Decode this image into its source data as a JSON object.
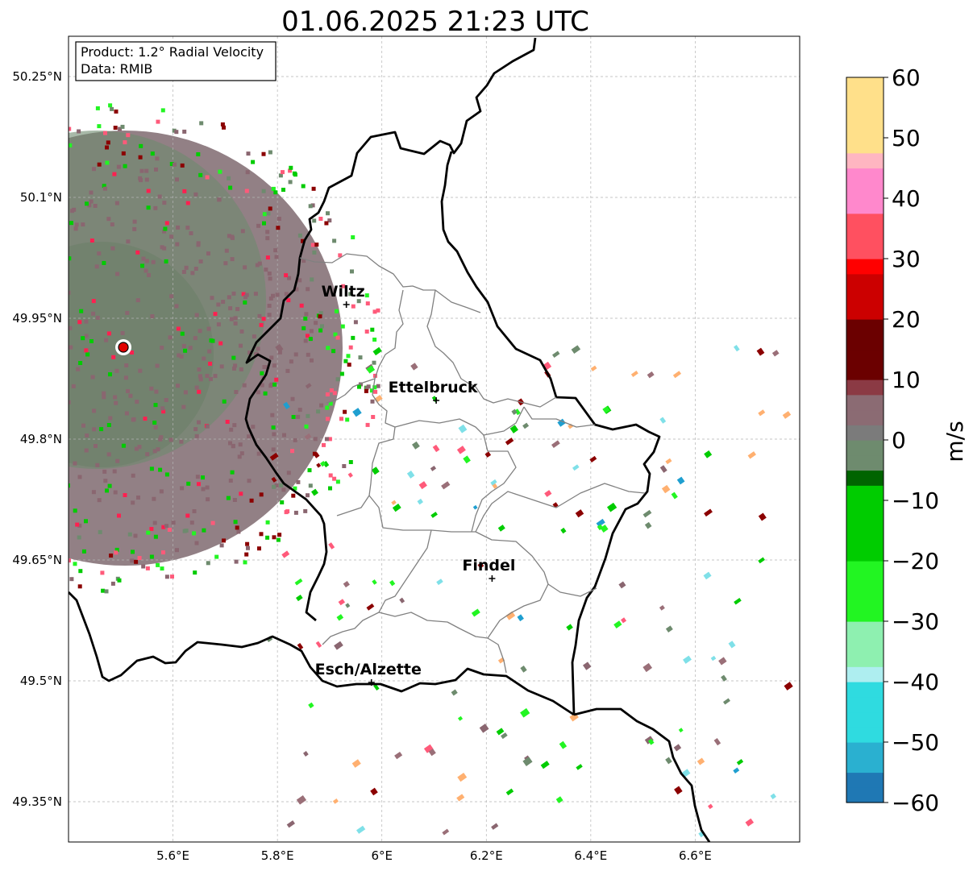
{
  "title": "01.06.2025 21:23 UTC",
  "info_box": {
    "product": "Product: 1.2° Radial Velocity",
    "data": "Data: RMIB"
  },
  "map": {
    "lon_range": [
      5.4,
      6.8
    ],
    "lat_range": [
      49.3,
      50.3
    ],
    "x_ticks": [
      {
        "value": 5.6,
        "label": "5.6°E"
      },
      {
        "value": 5.8,
        "label": "5.8°E"
      },
      {
        "value": 6.0,
        "label": "6°E"
      },
      {
        "value": 6.2,
        "label": "6.2°E"
      },
      {
        "value": 6.4,
        "label": "6.4°E"
      },
      {
        "value": 6.6,
        "label": "6.6°E"
      }
    ],
    "y_ticks": [
      {
        "value": 50.25,
        "label": "50.25°N"
      },
      {
        "value": 50.1,
        "label": "50.1°N"
      },
      {
        "value": 49.95,
        "label": "49.95°N"
      },
      {
        "value": 49.8,
        "label": "49.8°N"
      },
      {
        "value": 49.65,
        "label": "49.65°N"
      },
      {
        "value": 49.5,
        "label": "49.5°N"
      },
      {
        "value": 49.35,
        "label": "49.35°N"
      }
    ],
    "grid": true,
    "radar_site": {
      "lon": 5.505,
      "lat": 49.914
    },
    "cities": [
      {
        "name": "Wiltz",
        "lon": 5.932,
        "lat": 49.967
      },
      {
        "name": "Ettelbruck",
        "lon": 6.104,
        "lat": 49.848
      },
      {
        "name": "Findel",
        "lon": 6.211,
        "lat": 49.627
      },
      {
        "name": "Esch/Alzette",
        "lon": 5.98,
        "lat": 49.498
      }
    ]
  },
  "colorbar": {
    "label": "m/s",
    "vmin": -60,
    "vmax": 60,
    "ticks": [
      {
        "value": 60,
        "label": "60"
      },
      {
        "value": 50,
        "label": "50"
      },
      {
        "value": 40,
        "label": "40"
      },
      {
        "value": 30,
        "label": "30"
      },
      {
        "value": 20,
        "label": "20"
      },
      {
        "value": 10,
        "label": "10"
      },
      {
        "value": 0,
        "label": "0"
      },
      {
        "value": -10,
        "label": "−10"
      },
      {
        "value": -20,
        "label": "−20"
      },
      {
        "value": -30,
        "label": "−30"
      },
      {
        "value": -40,
        "label": "−40"
      },
      {
        "value": -50,
        "label": "−50"
      },
      {
        "value": -60,
        "label": "−60"
      }
    ],
    "color_stops": [
      {
        "value": -60,
        "color": "#1f78b4"
      },
      {
        "value": -55,
        "color": "#2ab0d0"
      },
      {
        "value": -50,
        "color": "#2fdbe0"
      },
      {
        "value": -40,
        "color": "#aeeef0"
      },
      {
        "value": -37,
        "color": "#8ef0b0"
      },
      {
        "value": -30,
        "color": "#22f522"
      },
      {
        "value": -20,
        "color": "#00cc00"
      },
      {
        "value": -8,
        "color": "#006400"
      },
      {
        "value": -6,
        "color": "#6e8b6e"
      },
      {
        "value": 0,
        "color": "#7b7b7b"
      },
      {
        "value": 2,
        "color": "#8b6b73"
      },
      {
        "value": 8,
        "color": "#8b3a44"
      },
      {
        "value": 9,
        "color": "#6b0000"
      },
      {
        "value": 20,
        "color": "#cc0000"
      },
      {
        "value": 28,
        "color": "#ff0000"
      },
      {
        "value": 29,
        "color": "#ff5060"
      },
      {
        "value": 38,
        "color": "#ff88cc"
      },
      {
        "value": 44,
        "color": "#ffb6c1"
      },
      {
        "value": 48,
        "color": "#ffe08a"
      },
      {
        "value": 60,
        "color": "#ff9b50"
      }
    ]
  }
}
